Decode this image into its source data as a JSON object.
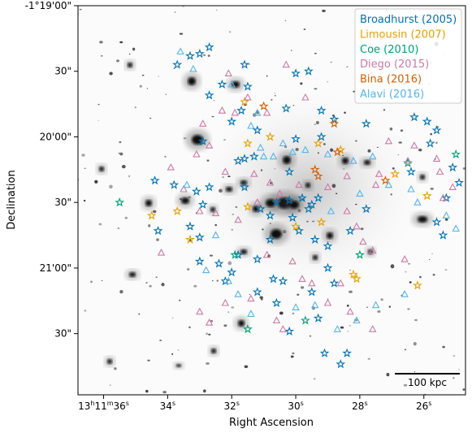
{
  "chart_data": {
    "type": "scatter",
    "title": "",
    "xlabel": "Right Ascension",
    "ylabel": "Declination",
    "x_ticks": [
      {
        "value": 36,
        "label": "13h11m36s"
      },
      {
        "value": 34,
        "label": "34s"
      },
      {
        "value": 32,
        "label": "32s"
      },
      {
        "value": 30,
        "label": "30s"
      },
      {
        "value": 28,
        "label": "28s"
      },
      {
        "value": 26,
        "label": "26s"
      }
    ],
    "y_ticks": [
      {
        "value": 0,
        "label": "-1°19'00\""
      },
      {
        "value": 30,
        "label": "30\""
      },
      {
        "value": 60,
        "label": "20'00\""
      },
      {
        "value": 90,
        "label": "30\""
      },
      {
        "value": 120,
        "label": "21'00\""
      },
      {
        "value": 150,
        "label": "30\""
      }
    ],
    "xlim": [
      36.8,
      24.7
    ],
    "ylim": [
      0,
      178
    ],
    "x_unit": "seconds of RA past 13h11m",
    "y_unit": "arcsec south of -1°19'00\"",
    "background": "grayscale galaxy-cluster image",
    "scalebar": {
      "label": "100 kpc",
      "length_arcsec": 31.2
    },
    "legend_position": "top-right",
    "series": [
      {
        "name": "Broadhurst (2005)",
        "color": "#0072b2",
        "marker": "star",
        "points": [
          [
            33.3,
            23
          ],
          [
            33.0,
            22
          ],
          [
            32.7,
            19
          ],
          [
            33.7,
            27
          ],
          [
            32.3,
            36
          ],
          [
            32.7,
            41
          ],
          [
            31.5,
            37
          ],
          [
            31.6,
            27
          ],
          [
            30.0,
            31
          ],
          [
            29.6,
            30
          ],
          [
            32.0,
            53
          ],
          [
            31.7,
            48
          ],
          [
            32.9,
            62
          ],
          [
            31.8,
            71
          ],
          [
            31.2,
            57
          ],
          [
            30.3,
            47
          ],
          [
            29.2,
            48
          ],
          [
            28.8,
            52
          ],
          [
            27.8,
            54
          ],
          [
            26.3,
            51
          ],
          [
            25.9,
            53
          ],
          [
            25.6,
            57
          ],
          [
            25.8,
            63
          ],
          [
            26.4,
            76
          ],
          [
            25.1,
            74
          ],
          [
            24.9,
            81
          ],
          [
            25.3,
            88
          ],
          [
            25.6,
            99
          ],
          [
            25.4,
            105
          ],
          [
            33.8,
            82
          ],
          [
            33.1,
            85
          ],
          [
            32.9,
            91
          ],
          [
            31.6,
            83
          ],
          [
            31.1,
            93
          ],
          [
            30.8,
            96
          ],
          [
            30.6,
            90
          ],
          [
            30.2,
            89
          ],
          [
            29.8,
            88
          ],
          [
            29.5,
            91
          ],
          [
            29.3,
            88
          ],
          [
            29.6,
            93
          ],
          [
            30.1,
            97
          ],
          [
            29.9,
            103
          ],
          [
            29.4,
            107
          ],
          [
            29.0,
            110
          ],
          [
            28.3,
            103
          ],
          [
            27.8,
            93
          ],
          [
            30.8,
            107
          ],
          [
            31.2,
            116
          ],
          [
            32.2,
            126
          ],
          [
            32.4,
            118
          ],
          [
            33.0,
            106
          ],
          [
            33.3,
            101
          ],
          [
            34.3,
            103
          ],
          [
            30.7,
            125
          ],
          [
            31.2,
            131
          ],
          [
            30.6,
            136
          ],
          [
            29.3,
            143
          ],
          [
            28.8,
            127
          ],
          [
            29.0,
            120
          ],
          [
            31.6,
            70
          ],
          [
            32.7,
            83
          ],
          [
            34.4,
            80
          ],
          [
            33.0,
            117
          ],
          [
            32.0,
            122
          ],
          [
            30.4,
            126
          ],
          [
            29.5,
            131
          ],
          [
            29.1,
            159
          ],
          [
            28.4,
            159
          ],
          [
            28.6,
            164
          ],
          [
            30.2,
            149
          ],
          [
            31.8,
            114
          ],
          [
            30.2,
            76
          ],
          [
            31.3,
            69
          ],
          [
            30.0,
            61
          ],
          [
            29.2,
            60
          ]
        ]
      },
      {
        "name": "Limousin (2007)",
        "color": "#e69f00",
        "marker": "star",
        "points": [
          [
            31.6,
            44
          ],
          [
            30.8,
            60
          ],
          [
            29.3,
            63
          ],
          [
            28.6,
            66
          ],
          [
            26.9,
            77
          ],
          [
            25.9,
            87
          ],
          [
            34.5,
            96
          ],
          [
            33.7,
            94
          ],
          [
            33.3,
            107
          ],
          [
            31.5,
            92
          ],
          [
            30.0,
            101
          ],
          [
            29.2,
            99
          ],
          [
            28.2,
            123
          ],
          [
            28.1,
            125
          ],
          [
            26.2,
            128
          ],
          [
            31.5,
            63
          ]
        ]
      },
      {
        "name": "Coe (2010)",
        "color": "#009e73",
        "marker": "star",
        "points": [
          [
            35.5,
            90
          ],
          [
            31.9,
            114
          ],
          [
            31.5,
            148
          ],
          [
            29.7,
            144
          ],
          [
            28.0,
            114
          ],
          [
            25.0,
            68
          ],
          [
            24.5,
            72
          ],
          [
            26.5,
            72
          ]
        ]
      },
      {
        "name": "Diego (2015)",
        "color": "#cc79a7",
        "marker": "triangle",
        "points": [
          [
            32.1,
            31
          ],
          [
            30.3,
            27
          ],
          [
            31.5,
            42
          ],
          [
            29.7,
            42
          ],
          [
            32.3,
            48
          ],
          [
            31.9,
            49
          ],
          [
            30.9,
            49
          ],
          [
            32.9,
            54
          ],
          [
            33.1,
            68
          ],
          [
            32.7,
            64
          ],
          [
            33.9,
            74
          ],
          [
            33.5,
            84
          ],
          [
            32.2,
            76
          ],
          [
            31.3,
            77
          ],
          [
            30.8,
            81
          ],
          [
            29.9,
            82
          ],
          [
            29.0,
            83
          ],
          [
            28.4,
            78
          ],
          [
            27.4,
            77
          ],
          [
            26.5,
            71
          ],
          [
            26.3,
            64
          ],
          [
            25.6,
            70
          ],
          [
            25.4,
            88
          ],
          [
            25.1,
            83
          ],
          [
            33.0,
            94
          ],
          [
            32.5,
            95
          ],
          [
            31.8,
            98
          ],
          [
            31.2,
            90
          ],
          [
            30.5,
            86
          ],
          [
            28.4,
            94
          ],
          [
            28.1,
            101
          ],
          [
            27.9,
            108
          ],
          [
            27.6,
            112
          ],
          [
            26.6,
            116
          ],
          [
            30.9,
            114
          ],
          [
            30.1,
            117
          ],
          [
            29.8,
            125
          ],
          [
            29.5,
            127
          ],
          [
            29.0,
            136
          ],
          [
            28.3,
            140
          ],
          [
            27.6,
            148
          ],
          [
            30.4,
            148
          ],
          [
            30.6,
            144
          ],
          [
            32.7,
            145
          ],
          [
            33.0,
            140
          ],
          [
            32.2,
            136
          ],
          [
            31.4,
            134
          ],
          [
            34.2,
            113
          ],
          [
            28.6,
            127
          ],
          [
            27.1,
            62
          ],
          [
            25.5,
            76
          ],
          [
            27.5,
            82
          ]
        ]
      },
      {
        "name": "Bina (2016)",
        "color": "#d55e00",
        "marker": "star",
        "points": [
          [
            31.0,
            46
          ],
          [
            28.8,
            54
          ],
          [
            28.7,
            67
          ],
          [
            27.2,
            80
          ],
          [
            29.4,
            75
          ],
          [
            29.3,
            78
          ]
        ]
      },
      {
        "name": "Alavi (2016)",
        "color": "#56b4e9",
        "marker": "triangle",
        "points": [
          [
            33.6,
            21
          ],
          [
            33.2,
            29
          ],
          [
            32.0,
            36
          ],
          [
            31.2,
            49
          ],
          [
            31.4,
            55
          ],
          [
            31.1,
            65
          ],
          [
            30.7,
            69
          ],
          [
            30.1,
            67
          ],
          [
            29.7,
            66
          ],
          [
            29.0,
            68
          ],
          [
            28.2,
            71
          ],
          [
            27.6,
            69
          ],
          [
            27.1,
            82
          ],
          [
            26.4,
            84
          ],
          [
            26.2,
            90
          ],
          [
            25.3,
            96
          ],
          [
            25.0,
            102
          ],
          [
            33.4,
            82
          ],
          [
            32.5,
            105
          ],
          [
            32.8,
            121
          ],
          [
            32.1,
            126
          ],
          [
            31.8,
            132
          ],
          [
            31.4,
            141
          ],
          [
            30.0,
            138
          ],
          [
            29.4,
            137
          ],
          [
            28.7,
            148
          ],
          [
            28.1,
            144
          ],
          [
            27.5,
            137
          ],
          [
            26.6,
            132
          ],
          [
            31.0,
            69
          ],
          [
            30.4,
            63
          ],
          [
            28.9,
            94
          ],
          [
            28.0,
            86
          ]
        ]
      }
    ]
  }
}
